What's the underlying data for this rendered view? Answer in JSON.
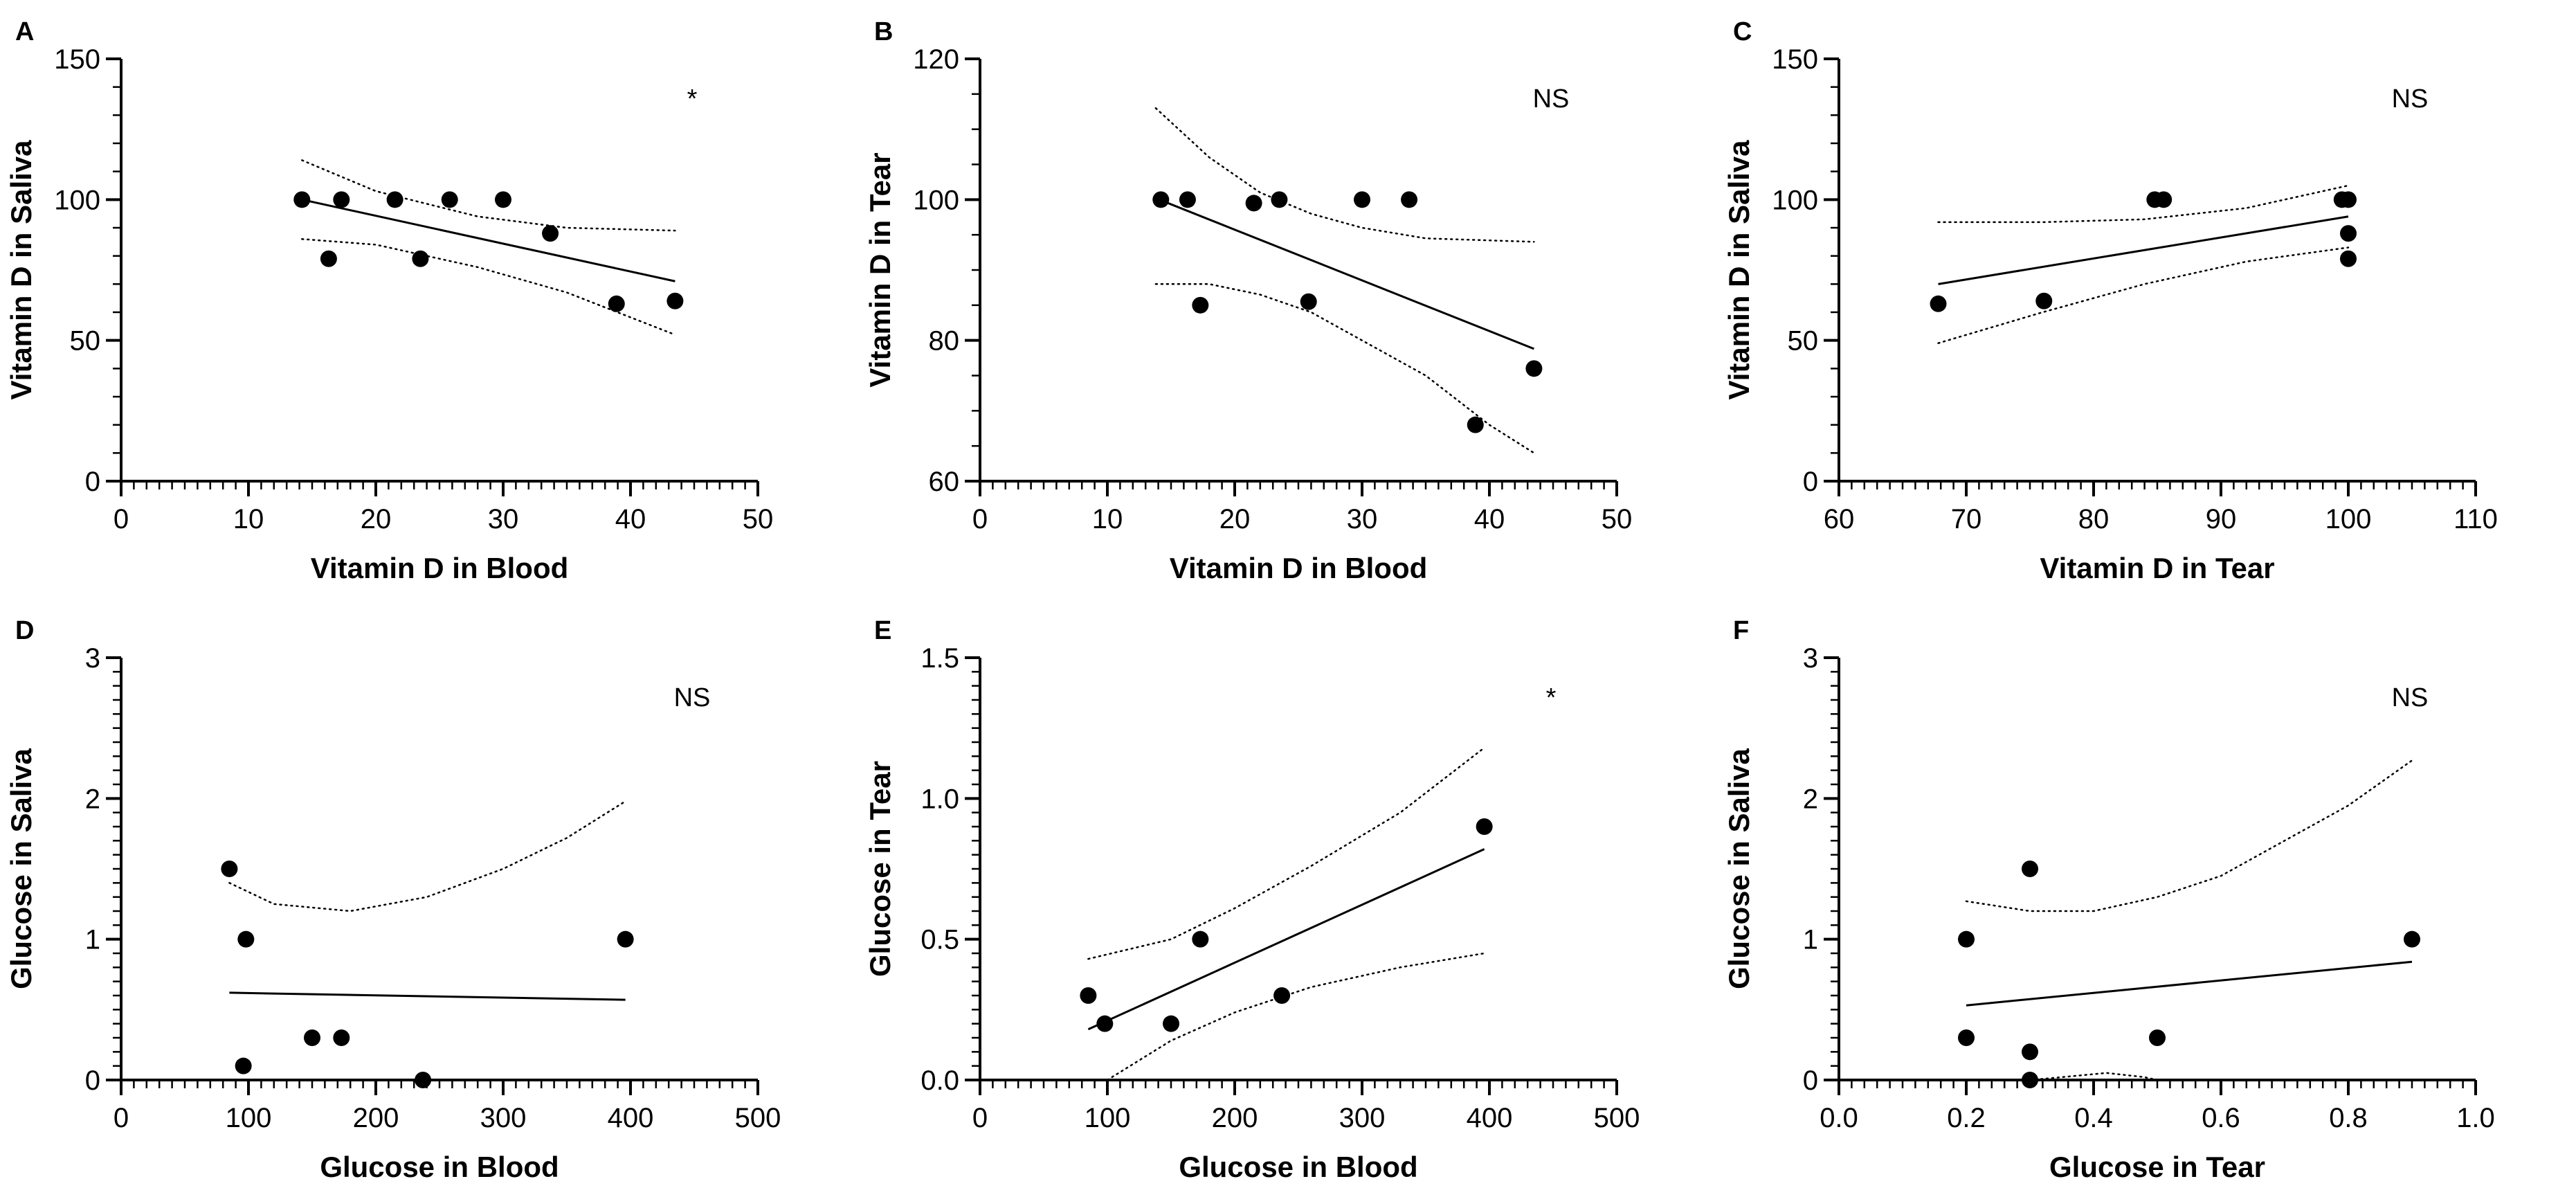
{
  "chart_data": [
    {
      "panel": "A",
      "type": "scatter",
      "xlabel": "Vitamin D in Blood",
      "ylabel": "Vitamin D in Saliva",
      "xlim": [
        0,
        50
      ],
      "ylim": [
        0,
        150
      ],
      "xticks": [
        0,
        10,
        20,
        30,
        40,
        50
      ],
      "yticks": [
        0,
        50,
        100,
        150
      ],
      "xminor": 1,
      "yminor": 10,
      "points": [
        [
          14.2,
          100
        ],
        [
          16.3,
          79
        ],
        [
          17.3,
          100
        ],
        [
          21.5,
          100
        ],
        [
          23.5,
          79
        ],
        [
          25.8,
          100
        ],
        [
          30.0,
          100
        ],
        [
          33.7,
          88
        ],
        [
          38.9,
          63
        ],
        [
          43.5,
          64
        ]
      ],
      "fit": [
        [
          14.2,
          100
        ],
        [
          43.5,
          71
        ]
      ],
      "ci_upper": [
        [
          14.2,
          114
        ],
        [
          20,
          103
        ],
        [
          28,
          94
        ],
        [
          35,
          90
        ],
        [
          43.5,
          89
        ]
      ],
      "ci_lower": [
        [
          14.2,
          86
        ],
        [
          20,
          84
        ],
        [
          28,
          76
        ],
        [
          35,
          67
        ],
        [
          43.5,
          52
        ]
      ],
      "annotation": "*"
    },
    {
      "panel": "B",
      "type": "scatter",
      "xlabel": "Vitamin D in Blood",
      "ylabel": "Vitamin D in Tear",
      "xlim": [
        0,
        50
      ],
      "ylim": [
        60,
        120
      ],
      "xticks": [
        0,
        10,
        20,
        30,
        40,
        50
      ],
      "yticks": [
        60,
        80,
        100,
        120
      ],
      "xminor": 1,
      "yminor": 5,
      "points": [
        [
          14.2,
          100
        ],
        [
          16.3,
          100
        ],
        [
          17.3,
          85
        ],
        [
          21.5,
          99.5
        ],
        [
          23.5,
          100
        ],
        [
          25.8,
          85.5
        ],
        [
          30.0,
          100
        ],
        [
          33.7,
          100
        ],
        [
          38.9,
          68
        ],
        [
          43.5,
          76
        ]
      ],
      "fit": [
        [
          13.8,
          100.2
        ],
        [
          43.5,
          78.8
        ]
      ],
      "ci_upper": [
        [
          13.8,
          113
        ],
        [
          18,
          106
        ],
        [
          22,
          101
        ],
        [
          26,
          98
        ],
        [
          30,
          96
        ],
        [
          35,
          94.5
        ],
        [
          43.5,
          94
        ]
      ],
      "ci_lower": [
        [
          13.8,
          88
        ],
        [
          18,
          88
        ],
        [
          22,
          86.5
        ],
        [
          26,
          84
        ],
        [
          30,
          80
        ],
        [
          35,
          75
        ],
        [
          40,
          68
        ],
        [
          43.5,
          64
        ]
      ],
      "annotation": "NS"
    },
    {
      "panel": "C",
      "type": "scatter",
      "xlabel": "Vitamin D in Tear",
      "ylabel": "Vitamin D in Saliva",
      "xlim": [
        60,
        110
      ],
      "ylim": [
        0,
        150
      ],
      "xticks": [
        60,
        70,
        80,
        90,
        100,
        110
      ],
      "yticks": [
        0,
        50,
        100,
        150
      ],
      "xminor": 1,
      "yminor": 10,
      "points": [
        [
          67.8,
          63
        ],
        [
          76.1,
          64
        ],
        [
          84.8,
          100
        ],
        [
          85.5,
          100
        ],
        [
          99.5,
          100
        ],
        [
          100,
          100
        ],
        [
          100,
          88
        ],
        [
          100,
          79
        ]
      ],
      "fit": [
        [
          67.8,
          70
        ],
        [
          100,
          94
        ]
      ],
      "ci_upper": [
        [
          67.8,
          92
        ],
        [
          76,
          92
        ],
        [
          84,
          93
        ],
        [
          92,
          97
        ],
        [
          100,
          105
        ]
      ],
      "ci_lower": [
        [
          67.8,
          49
        ],
        [
          76,
          60
        ],
        [
          84,
          70
        ],
        [
          92,
          78
        ],
        [
          100,
          83
        ]
      ],
      "annotation": "NS"
    },
    {
      "panel": "D",
      "type": "scatter",
      "xlabel": "Glucose in Blood",
      "ylabel": "Glucose in Saliva",
      "xlim": [
        0,
        500
      ],
      "ylim": [
        0,
        3
      ],
      "xticks": [
        0,
        100,
        200,
        300,
        400,
        500
      ],
      "yticks": [
        0,
        1,
        2,
        3
      ],
      "xminor": 10,
      "yminor": 0.1,
      "points": [
        [
          85,
          1.5
        ],
        [
          98,
          1.0
        ],
        [
          96,
          0.1
        ],
        [
          150,
          0.3
        ],
        [
          173,
          0.3
        ],
        [
          237,
          0.0
        ],
        [
          396,
          1.0
        ]
      ],
      "fit": [
        [
          85,
          0.62
        ],
        [
          396,
          0.57
        ]
      ],
      "ci_upper": [
        [
          85,
          1.4
        ],
        [
          120,
          1.25
        ],
        [
          180,
          1.2
        ],
        [
          240,
          1.3
        ],
        [
          300,
          1.5
        ],
        [
          350,
          1.72
        ],
        [
          396,
          1.98
        ]
      ],
      "ci_lower": [],
      "annotation": "NS"
    },
    {
      "panel": "E",
      "type": "scatter",
      "xlabel": "Glucose in Blood",
      "ylabel": "Glucose in Tear",
      "xlim": [
        0,
        500
      ],
      "ylim": [
        0,
        1.5
      ],
      "xticks": [
        0,
        100,
        200,
        300,
        400,
        500
      ],
      "yticks": [
        "0.0",
        "0.5",
        "1.0",
        "1.5"
      ],
      "xminor": 10,
      "yminor": 0.05,
      "points": [
        [
          85,
          0.3
        ],
        [
          98,
          0.2
        ],
        [
          150,
          0.2
        ],
        [
          173,
          0.5
        ],
        [
          237,
          0.3
        ],
        [
          396,
          0.9
        ]
      ],
      "fit": [
        [
          85,
          0.18
        ],
        [
          396,
          0.82
        ]
      ],
      "ci_upper": [
        [
          85,
          0.43
        ],
        [
          150,
          0.5
        ],
        [
          200,
          0.61
        ],
        [
          260,
          0.76
        ],
        [
          330,
          0.95
        ],
        [
          396,
          1.18
        ]
      ],
      "ci_lower": [
        [
          100,
          0.0
        ],
        [
          150,
          0.14
        ],
        [
          200,
          0.24
        ],
        [
          260,
          0.33
        ],
        [
          330,
          0.4
        ],
        [
          396,
          0.45
        ]
      ],
      "annotation": "*"
    },
    {
      "panel": "F",
      "type": "scatter",
      "xlabel": "Glucose in Tear",
      "ylabel": "Glucose in Saliva",
      "xlim": [
        0,
        1
      ],
      "ylim": [
        0,
        3
      ],
      "xticks": [
        "0.0",
        "0.2",
        "0.4",
        "0.6",
        "0.8",
        "1.0"
      ],
      "yticks": [
        0,
        1,
        2,
        3
      ],
      "xminor": 0.02,
      "yminor": 0.1,
      "points": [
        [
          0.2,
          1.0
        ],
        [
          0.2,
          0.3
        ],
        [
          0.3,
          1.5
        ],
        [
          0.3,
          0.2
        ],
        [
          0.3,
          0.0
        ],
        [
          0.5,
          0.3
        ],
        [
          0.9,
          1.0
        ]
      ],
      "fit": [
        [
          0.2,
          0.53
        ],
        [
          0.9,
          0.84
        ]
      ],
      "ci_upper": [
        [
          0.2,
          1.27
        ],
        [
          0.3,
          1.2
        ],
        [
          0.4,
          1.2
        ],
        [
          0.5,
          1.3
        ],
        [
          0.6,
          1.45
        ],
        [
          0.7,
          1.7
        ],
        [
          0.8,
          1.95
        ],
        [
          0.9,
          2.27
        ]
      ],
      "ci_lower": [
        [
          0.3,
          0.0
        ],
        [
          0.35,
          0.02
        ],
        [
          0.42,
          0.05
        ],
        [
          0.48,
          0.02
        ],
        [
          0.5,
          0.0
        ]
      ],
      "annotation": "NS"
    }
  ]
}
